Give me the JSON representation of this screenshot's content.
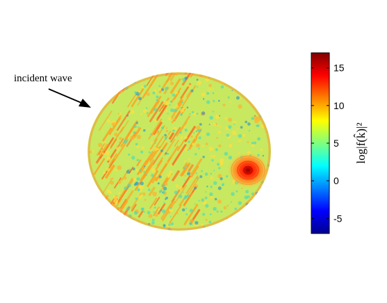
{
  "annotation": {
    "label": "incident wave",
    "icon": "arrow-icon"
  },
  "colorbar": {
    "min": -7,
    "max": 17,
    "ticks": [
      -5,
      0,
      5,
      10,
      15
    ],
    "tick_labels": [
      "-5",
      "0",
      "5",
      "10",
      "15"
    ],
    "label": "log|f(k̂)|²",
    "colormap": "jet"
  },
  "sphere": {
    "background_value": 5,
    "hotspot_peak_value": 17,
    "colors": {
      "background": "#c8e860",
      "streak": "#ffa020",
      "speckle": "#40d8c0",
      "hotspot": "#cc0000"
    }
  }
}
